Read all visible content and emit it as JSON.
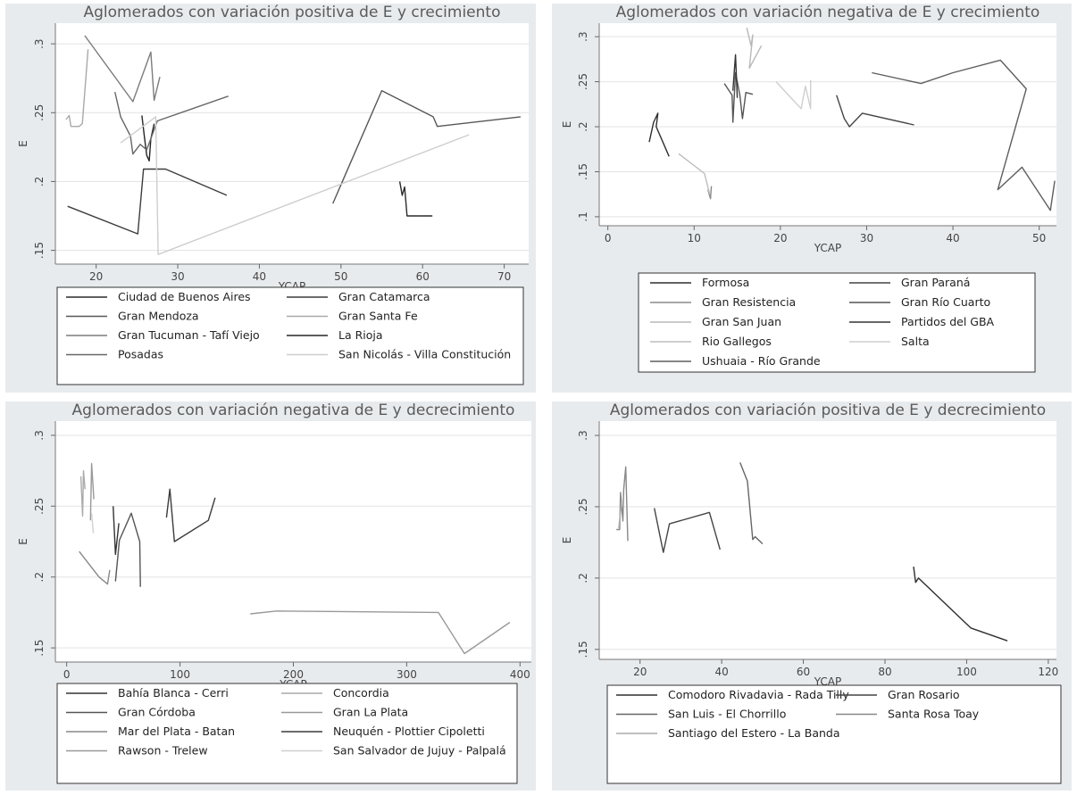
{
  "chart_data": [
    {
      "type": "line",
      "title": "Aglomerados con variación positiva de E y crecimiento",
      "xlabel": "YCAP",
      "ylabel": "E",
      "xlim": [
        15,
        73
      ],
      "ylim": [
        0.14,
        0.315
      ],
      "xticks": [
        "20",
        "30",
        "40",
        "50",
        "60",
        "70"
      ],
      "xtick_values": [
        20,
        30,
        40,
        50,
        60,
        70
      ],
      "yticks": [
        ".15",
        ".2",
        ".25",
        ".3"
      ],
      "ytick_values": [
        0.15,
        0.2,
        0.25,
        0.3
      ],
      "grid": true,
      "legend_position": "bottom",
      "series": [
        {
          "name": "Ciudad de Buenos Aires",
          "color": "#2a2a2a",
          "points": [
            [
              57.2,
              0.2
            ],
            [
              57.5,
              0.19
            ],
            [
              57.8,
              0.196
            ],
            [
              58.1,
              0.175
            ],
            [
              61.2,
              0.175
            ]
          ]
        },
        {
          "name": "Gran Catamarca",
          "color": "#3c3c3c",
          "points": [
            [
              16.5,
              0.182
            ],
            [
              25.1,
              0.162
            ],
            [
              25.8,
              0.209
            ],
            [
              28.5,
              0.209
            ],
            [
              36.0,
              0.19
            ]
          ]
        },
        {
          "name": "Gran Mendoza",
          "color": "#575757",
          "points": [
            [
              49.0,
              0.184
            ],
            [
              55.0,
              0.266
            ],
            [
              61.3,
              0.247
            ],
            [
              61.8,
              0.24
            ],
            [
              72.0,
              0.247
            ]
          ]
        },
        {
          "name": "Gran Santa Fe",
          "color": "#a9a9a9",
          "points": [
            [
              16.3,
              0.245
            ],
            [
              16.7,
              0.248
            ],
            [
              16.9,
              0.24
            ],
            [
              17.9,
              0.24
            ],
            [
              18.3,
              0.242
            ],
            [
              19.0,
              0.296
            ]
          ]
        },
        {
          "name": "Gran Tucuman - Tafí Viejo",
          "color": "#7c7c7c",
          "points": [
            [
              18.6,
              0.306
            ],
            [
              24.5,
              0.258
            ],
            [
              26.7,
              0.294
            ],
            [
              27.1,
              0.259
            ],
            [
              27.8,
              0.276
            ]
          ]
        },
        {
          "name": "La Rioja",
          "color": "#262626",
          "points": [
            [
              25.6,
              0.248
            ],
            [
              25.9,
              0.233
            ],
            [
              26.2,
              0.219
            ],
            [
              26.5,
              0.215
            ],
            [
              26.7,
              0.231
            ],
            [
              27.1,
              0.242
            ]
          ]
        },
        {
          "name": "Posadas",
          "color": "#666666",
          "points": [
            [
              22.3,
              0.265
            ],
            [
              23.0,
              0.247
            ],
            [
              24.2,
              0.233
            ],
            [
              24.5,
              0.22
            ],
            [
              25.4,
              0.227
            ],
            [
              26.2,
              0.223
            ],
            [
              27.5,
              0.244
            ],
            [
              36.2,
              0.262
            ]
          ]
        },
        {
          "name": "San Nicolás - Villa Constitución",
          "color": "#cecece",
          "points": [
            [
              23.0,
              0.228
            ],
            [
              27.3,
              0.247
            ],
            [
              27.6,
              0.147
            ],
            [
              65.7,
              0.234
            ]
          ]
        }
      ]
    },
    {
      "type": "line",
      "title": "Aglomerados con variación negativa de E y crecimiento",
      "xlabel": "YCAP",
      "ylabel": "E",
      "xlim": [
        -1,
        52
      ],
      "ylim": [
        0.09,
        0.315
      ],
      "xticks": [
        "0",
        "10",
        "20",
        "30",
        "40",
        "50"
      ],
      "xtick_values": [
        0,
        10,
        20,
        30,
        40,
        50
      ],
      "yticks": [
        ".1",
        ".15",
        ".2",
        ".25",
        ".3"
      ],
      "ytick_values": [
        0.1,
        0.15,
        0.2,
        0.25,
        0.3
      ],
      "grid": true,
      "legend_position": "bottom",
      "series": [
        {
          "name": "Formosa",
          "color": "#2e2e2e",
          "points": [
            [
              4.8,
              0.183
            ],
            [
              5.3,
              0.205
            ],
            [
              5.8,
              0.215
            ],
            [
              5.6,
              0.2
            ],
            [
              7.1,
              0.167
            ]
          ]
        },
        {
          "name": "Gran Paraná",
          "color": "#444444",
          "points": [
            [
              26.5,
              0.235
            ],
            [
              27.4,
              0.209
            ],
            [
              28.0,
              0.2
            ],
            [
              29.5,
              0.215
            ],
            [
              35.5,
              0.202
            ]
          ]
        },
        {
          "name": "Gran Resistencia",
          "color": "#8a8a8a",
          "points": [
            [
              11.6,
              0.13
            ],
            [
              11.9,
              0.12
            ],
            [
              12.0,
              0.134
            ]
          ]
        },
        {
          "name": "Gran Río Cuarto",
          "color": "#555555",
          "points": [
            [
              13.5,
              0.248
            ],
            [
              14.4,
              0.235
            ],
            [
              14.5,
              0.205
            ],
            [
              14.8,
              0.26
            ],
            [
              15.3,
              0.235
            ],
            [
              15.6,
              0.209
            ],
            [
              16.0,
              0.238
            ],
            [
              16.8,
              0.236
            ]
          ]
        },
        {
          "name": "Gran San Juan",
          "color": "#b8b8b8",
          "points": [
            [
              16.1,
              0.31
            ],
            [
              16.6,
              0.29
            ],
            [
              16.8,
              0.302
            ],
            [
              16.4,
              0.265
            ],
            [
              17.8,
              0.29
            ]
          ]
        },
        {
          "name": "Partidos del GBA",
          "color": "#333333",
          "points": [
            [
              14.5,
              0.24
            ],
            [
              14.8,
              0.28
            ],
            [
              15.0,
              0.232
            ]
          ]
        },
        {
          "name": "Rio Gallegos",
          "color": "#bdbdbd",
          "points": [
            [
              8.2,
              0.17
            ],
            [
              11.2,
              0.148
            ],
            [
              11.8,
              0.125
            ]
          ]
        },
        {
          "name": "Salta",
          "color": "#cfcfcf",
          "points": [
            [
              19.5,
              0.25
            ],
            [
              22.4,
              0.22
            ],
            [
              22.9,
              0.245
            ],
            [
              23.5,
              0.22
            ],
            [
              23.5,
              0.252
            ]
          ]
        },
        {
          "name": "Ushuaia - Río Grande",
          "color": "#5e5e5e",
          "points": [
            [
              30.6,
              0.26
            ],
            [
              36.3,
              0.248
            ],
            [
              40.0,
              0.26
            ],
            [
              45.5,
              0.274
            ],
            [
              48.5,
              0.242
            ],
            [
              45.2,
              0.13
            ],
            [
              48.0,
              0.155
            ],
            [
              51.3,
              0.107
            ],
            [
              51.8,
              0.14
            ]
          ]
        }
      ]
    },
    {
      "type": "line",
      "title": "Aglomerados con variación negativa de E y decrecimiento",
      "xlabel": "YCAP",
      "ylabel": "E",
      "xlim": [
        -10,
        410
      ],
      "ylim": [
        0.14,
        0.31
      ],
      "xticks": [
        "0",
        "100",
        "200",
        "300",
        "400"
      ],
      "xtick_values": [
        0,
        100,
        200,
        300,
        400
      ],
      "yticks": [
        ".15",
        ".2",
        ".25",
        ".3"
      ],
      "ytick_values": [
        0.15,
        0.2,
        0.25,
        0.3
      ],
      "grid": true,
      "legend_position": "bottom",
      "series": [
        {
          "name": "Bahía Blanca - Cerri",
          "color": "#333333",
          "points": [
            [
              41.0,
              0.25
            ],
            [
              43.0,
              0.216
            ],
            [
              46.0,
              0.238
            ]
          ]
        },
        {
          "name": "Concordia",
          "color": "#aaaaaa",
          "points": [
            [
              12.5,
              0.271
            ],
            [
              14.0,
              0.243
            ],
            [
              14.8,
              0.275
            ],
            [
              16.2,
              0.262
            ]
          ]
        },
        {
          "name": "Gran Córdoba",
          "color": "#555555",
          "points": [
            [
              43.0,
              0.197
            ],
            [
              46.5,
              0.226
            ],
            [
              57.0,
              0.245
            ],
            [
              64.5,
              0.225
            ],
            [
              65.0,
              0.193
            ]
          ]
        },
        {
          "name": "Gran La Plata",
          "color": "#999999",
          "points": [
            [
              21.0,
              0.24
            ],
            [
              22.0,
              0.28
            ],
            [
              24.0,
              0.255
            ]
          ]
        },
        {
          "name": "Mar del Plata - Batan",
          "color": "#888888",
          "points": [
            [
              11.0,
              0.218
            ],
            [
              28.5,
              0.2
            ],
            [
              36.0,
              0.195
            ],
            [
              38.0,
              0.205
            ]
          ]
        },
        {
          "name": "Neuquén - Plottier Cipoletti",
          "color": "#3a3a3a",
          "points": [
            [
              88.0,
              0.242
            ],
            [
              91.0,
              0.262
            ],
            [
              95.0,
              0.225
            ],
            [
              125.0,
              0.24
            ],
            [
              131.0,
              0.256
            ]
          ]
        },
        {
          "name": "Rawson - Trelew",
          "color": "#999999",
          "points": [
            [
              162.0,
              0.174
            ],
            [
              185.0,
              0.176
            ],
            [
              328.0,
              0.175
            ],
            [
              351.0,
              0.146
            ],
            [
              391.0,
              0.168
            ]
          ]
        },
        {
          "name": "San Salvador de Jujuy - Palpalá",
          "color": "#d0d0d0",
          "points": [
            [
              22.0,
              0.245
            ],
            [
              23.5,
              0.231
            ]
          ]
        }
      ]
    },
    {
      "type": "line",
      "title": "Aglomerados con variación positiva de E y decrecimiento",
      "xlabel": "YCAP",
      "ylabel": "E",
      "xlim": [
        10,
        122
      ],
      "ylim": [
        0.143,
        0.31
      ],
      "xticks": [
        "20",
        "40",
        "60",
        "80",
        "100",
        "120"
      ],
      "xtick_values": [
        20,
        40,
        60,
        80,
        100,
        120
      ],
      "yticks": [
        ".15",
        ".2",
        ".25",
        ".3"
      ],
      "ytick_values": [
        0.15,
        0.2,
        0.25,
        0.3
      ],
      "grid": true,
      "legend_position": "bottom",
      "series": [
        {
          "name": "Comodoro Rivadavia - Rada Tilly",
          "color": "#2e2e2e",
          "points": [
            [
              87.0,
              0.208
            ],
            [
              87.5,
              0.197
            ],
            [
              88.2,
              0.2
            ],
            [
              101.0,
              0.165
            ],
            [
              110.0,
              0.156
            ]
          ]
        },
        {
          "name": "Gran Rosario",
          "color": "#444444",
          "points": [
            [
              23.5,
              0.249
            ],
            [
              25.7,
              0.218
            ],
            [
              27.2,
              0.238
            ],
            [
              37.0,
              0.246
            ],
            [
              39.6,
              0.22
            ]
          ]
        },
        {
          "name": "San Luis - El Chorrillo",
          "color": "#666666",
          "points": [
            [
              44.5,
              0.281
            ],
            [
              46.3,
              0.268
            ],
            [
              47.6,
              0.227
            ],
            [
              48.2,
              0.229
            ],
            [
              50.0,
              0.224
            ]
          ]
        },
        {
          "name": "Santa Rosa Toay",
          "color": "#888888",
          "points": [
            [
              14.2,
              0.234
            ],
            [
              15.0,
              0.234
            ],
            [
              15.2,
              0.26
            ],
            [
              15.8,
              0.24
            ],
            [
              16.0,
              0.262
            ],
            [
              16.5,
              0.278
            ],
            [
              17.0,
              0.226
            ]
          ]
        },
        {
          "name": "Santiago del Estero - La Banda",
          "color": "#aaaaaa",
          "points": [
            [
              14.8,
              0.235
            ],
            [
              15.5,
              0.254
            ]
          ]
        }
      ]
    }
  ]
}
